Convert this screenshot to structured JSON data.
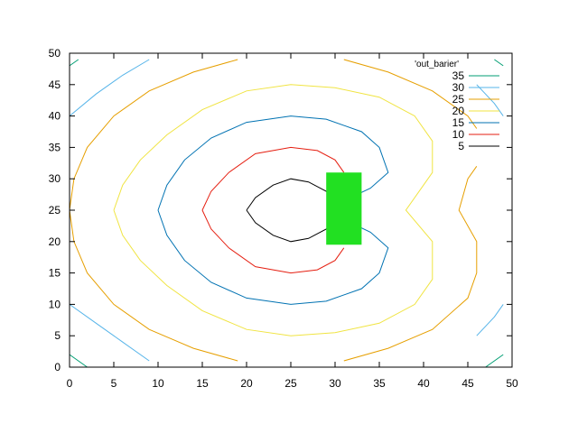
{
  "chart_data": {
    "type": "contour",
    "title": "",
    "xlabel": "",
    "ylabel": "",
    "xlim": [
      0,
      50
    ],
    "ylim": [
      0,
      50
    ],
    "x_ticks": [
      "0",
      "5",
      "10",
      "15",
      "20",
      "25",
      "30",
      "35",
      "40",
      "45",
      "50"
    ],
    "y_ticks": [
      "0",
      "5",
      "10",
      "15",
      "20",
      "25",
      "30",
      "35",
      "40",
      "45",
      "50"
    ],
    "grid": false,
    "legend": {
      "title": "'out_barier'",
      "placement": "top-right",
      "entries": [
        {
          "label": "35",
          "color": "#009e73"
        },
        {
          "label": "30",
          "color": "#56b4e9"
        },
        {
          "label": "25",
          "color": "#e69f00"
        },
        {
          "label": "20",
          "color": "#f0e442"
        },
        {
          "label": "15",
          "color": "#0072b2"
        },
        {
          "label": "10",
          "color": "#e51e10"
        },
        {
          "label": "5",
          "color": "#000000"
        }
      ]
    },
    "series": [
      {
        "name": "35",
        "color": "#009e73",
        "paths": [
          [
            [
              0,
              48
            ],
            [
              1,
              49
            ]
          ],
          [
            [
              0,
              2
            ],
            [
              2,
              0
            ]
          ],
          [
            [
              48,
              49
            ],
            [
              49,
              48
            ]
          ],
          [
            [
              47,
              0
            ],
            [
              49,
              2
            ]
          ]
        ]
      },
      {
        "name": "30",
        "color": "#56b4e9",
        "paths": [
          [
            [
              0,
              40
            ],
            [
              3,
              43.5
            ],
            [
              6,
              46.5
            ],
            [
              9,
              49
            ]
          ],
          [
            [
              0,
              10
            ],
            [
              3,
              7
            ],
            [
              6,
              4
            ],
            [
              9,
              1
            ]
          ],
          [
            [
              49,
              10
            ],
            [
              48,
              8
            ],
            [
              46,
              5
            ]
          ],
          [
            [
              49,
              40
            ],
            [
              48,
              42
            ],
            [
              46,
              45
            ]
          ]
        ]
      },
      {
        "name": "25",
        "color": "#e69f00",
        "paths": [
          [
            [
              0,
              25
            ],
            [
              0.5,
              30
            ],
            [
              2,
              35
            ],
            [
              5,
              40
            ],
            [
              9,
              44
            ],
            [
              14,
              47
            ],
            [
              19,
              49
            ]
          ],
          [
            [
              0,
              25
            ],
            [
              0.5,
              20
            ],
            [
              2,
              15
            ],
            [
              5,
              10
            ],
            [
              9,
              6
            ],
            [
              14,
              3
            ],
            [
              19,
              1
            ]
          ],
          [
            [
              31,
              1
            ],
            [
              36,
              3
            ],
            [
              41,
              6
            ],
            [
              45,
              11
            ],
            [
              46,
              15
            ],
            [
              46,
              20
            ],
            [
              44,
              25
            ],
            [
              45,
              30
            ],
            [
              46,
              32
            ]
          ],
          [
            [
              31,
              49
            ],
            [
              36,
              47
            ],
            [
              41,
              44
            ],
            [
              45,
              40
            ],
            [
              46,
              38
            ]
          ]
        ]
      },
      {
        "name": "20",
        "color": "#f0e442",
        "paths": [
          [
            [
              5,
              25
            ],
            [
              6,
              29
            ],
            [
              8,
              33
            ],
            [
              11,
              37
            ],
            [
              15,
              41
            ],
            [
              20,
              44
            ],
            [
              25,
              45
            ],
            [
              30,
              44.5
            ],
            [
              35,
              43
            ],
            [
              39,
              40
            ],
            [
              41,
              36
            ],
            [
              41,
              31
            ],
            [
              38,
              25
            ],
            [
              41,
              20
            ],
            [
              41,
              14
            ],
            [
              39,
              10
            ],
            [
              35,
              7
            ],
            [
              30,
              5.5
            ],
            [
              25,
              5
            ],
            [
              20,
              6
            ],
            [
              15,
              9
            ],
            [
              11,
              13
            ],
            [
              8,
              17
            ],
            [
              6,
              21
            ],
            [
              5,
              25
            ]
          ]
        ]
      },
      {
        "name": "15",
        "color": "#0072b2",
        "paths": [
          [
            [
              10,
              25
            ],
            [
              11,
              29
            ],
            [
              13,
              33
            ],
            [
              16,
              36.5
            ],
            [
              20,
              39
            ],
            [
              25,
              40
            ],
            [
              29,
              39.5
            ],
            [
              33,
              37.5
            ],
            [
              35,
              35
            ],
            [
              36,
              31
            ],
            [
              34,
              28.5
            ],
            [
              31,
              26.5
            ]
          ],
          [
            [
              10,
              25
            ],
            [
              11,
              21
            ],
            [
              13,
              17
            ],
            [
              16,
              13.5
            ],
            [
              20,
              11
            ],
            [
              25,
              10
            ],
            [
              29,
              10.5
            ],
            [
              33,
              12.5
            ],
            [
              35,
              15
            ],
            [
              36,
              19
            ],
            [
              34,
              21.5
            ],
            [
              31,
              23.5
            ]
          ]
        ]
      },
      {
        "name": "10",
        "color": "#e51e10",
        "paths": [
          [
            [
              15,
              25
            ],
            [
              16,
              28
            ],
            [
              18,
              31
            ],
            [
              21,
              34
            ],
            [
              25,
              35
            ],
            [
              28,
              34.5
            ],
            [
              30,
              33
            ],
            [
              31,
              31
            ]
          ],
          [
            [
              15,
              25
            ],
            [
              16,
              22
            ],
            [
              18,
              19
            ],
            [
              21,
              16
            ],
            [
              25,
              15
            ],
            [
              28,
              15.5
            ],
            [
              30,
              17
            ],
            [
              31,
              19
            ]
          ]
        ]
      },
      {
        "name": "5",
        "color": "#000000",
        "paths": [
          [
            [
              20,
              25
            ],
            [
              21,
              27
            ],
            [
              23,
              29
            ],
            [
              25,
              30
            ],
            [
              27,
              29.5
            ],
            [
              29,
              28
            ],
            [
              30,
              27
            ]
          ],
          [
            [
              20,
              25
            ],
            [
              21,
              23
            ],
            [
              23,
              21
            ],
            [
              25,
              20
            ],
            [
              27,
              20.5
            ],
            [
              29,
              22
            ],
            [
              30,
              23
            ]
          ]
        ]
      }
    ],
    "barrier": {
      "x": [
        29,
        33
      ],
      "y": [
        19.5,
        31
      ],
      "color": "#22e022"
    }
  }
}
